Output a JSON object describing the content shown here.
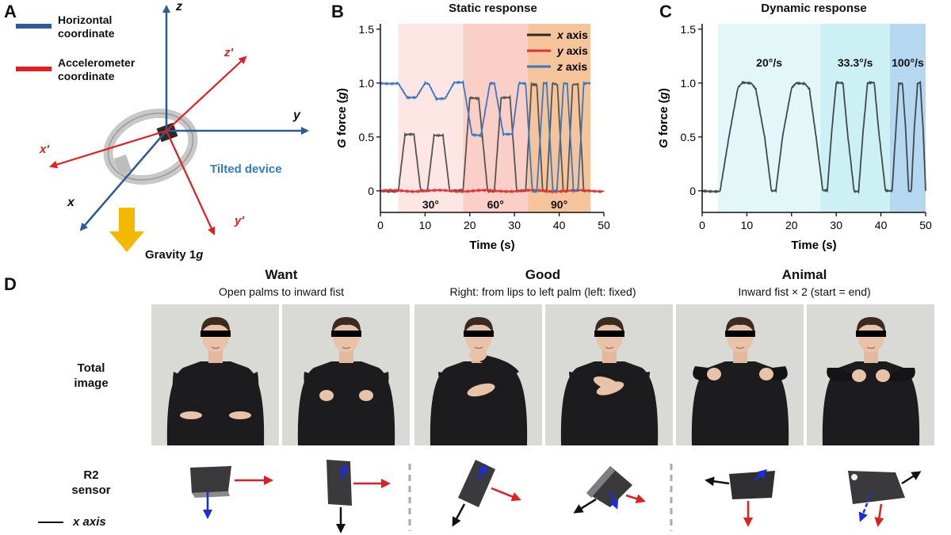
{
  "panel_a": {
    "letter": "A",
    "legend": [
      {
        "label_line1": "Horizontal",
        "label_line2": "coordinate",
        "color": "#2d5b93"
      },
      {
        "label_line1": "Accelerometer",
        "label_line2": "coordinate",
        "color": "#e02020"
      }
    ],
    "axes_horizontal": {
      "z": "z",
      "y": "y",
      "x": "x"
    },
    "axes_accel": {
      "z": "z'",
      "y": "y'",
      "x": "x'"
    },
    "tilted_label": "Tilted device",
    "gravity_prefix": "Gravity 1",
    "gravity_unit": "g"
  },
  "panel_b": {
    "letter": "B"
  },
  "panel_c": {
    "letter": "C"
  },
  "chart_data": [
    {
      "type": "line",
      "title": "Static response",
      "xlabel": "Time (s)",
      "ylabel_italic": "G",
      "ylabel_rest": " force (",
      "ylabel_unit": "g",
      "ylabel_close": ")",
      "xlim": [
        0,
        50
      ],
      "ylim": [
        -0.2,
        1.55
      ],
      "xticks": [
        "0",
        "10",
        "20",
        "30",
        "40",
        "50"
      ],
      "yticks": [
        "0",
        "0.5",
        "1.0",
        "1.5"
      ],
      "legend_position": "top-right",
      "legend": [
        {
          "name": "x",
          "suffix": " axis",
          "color": "#2b2b2b"
        },
        {
          "name": "y",
          "suffix": " axis",
          "color": "#e53030"
        },
        {
          "name": "z",
          "suffix": " axis",
          "color": "#3a78c2"
        }
      ],
      "regions": [
        {
          "label": "30°",
          "x0": 4,
          "x1": 18.5,
          "color": "#fde6e4"
        },
        {
          "label": "60°",
          "x0": 18.5,
          "x1": 33,
          "color": "#f9cfc8"
        },
        {
          "label": "90°",
          "x0": 33,
          "x1": 47,
          "color": "#f6c49a"
        }
      ],
      "series": [
        {
          "name": "x axis",
          "color": "#555555",
          "points": [
            [
              0,
              0
            ],
            [
              4,
              0
            ],
            [
              5.5,
              0.52
            ],
            [
              7.5,
              0.52
            ],
            [
              9,
              0
            ],
            [
              10.5,
              0
            ],
            [
              12,
              0.52
            ],
            [
              14,
              0.52
            ],
            [
              15.5,
              0
            ],
            [
              18.5,
              0
            ],
            [
              20,
              0.86
            ],
            [
              22,
              0.86
            ],
            [
              24,
              0
            ],
            [
              25.5,
              0
            ],
            [
              27,
              0.86
            ],
            [
              29,
              0.86
            ],
            [
              30.5,
              0
            ],
            [
              32.5,
              0
            ],
            [
              33.8,
              0.99
            ],
            [
              35,
              0.99
            ],
            [
              36.3,
              0
            ],
            [
              37.2,
              0
            ],
            [
              38.5,
              0.99
            ],
            [
              39.6,
              0.99
            ],
            [
              40.9,
              0
            ],
            [
              41.8,
              0
            ],
            [
              43,
              0.99
            ],
            [
              44.2,
              0.99
            ],
            [
              45.5,
              0
            ],
            [
              46,
              0
            ]
          ]
        },
        {
          "name": "y axis",
          "color": "#e53030",
          "points": [
            [
              0,
              0
            ],
            [
              50,
              0
            ]
          ]
        },
        {
          "name": "z axis",
          "color": "#3a78c2",
          "points": [
            [
              0,
              1
            ],
            [
              4,
              1
            ],
            [
              6,
              0.86
            ],
            [
              8,
              0.86
            ],
            [
              10,
              1
            ],
            [
              10.8,
              1
            ],
            [
              12.5,
              0.86
            ],
            [
              14.5,
              0.86
            ],
            [
              16.5,
              1
            ],
            [
              18.5,
              1
            ],
            [
              20.5,
              0.52
            ],
            [
              22.5,
              0.52
            ],
            [
              24.5,
              1
            ],
            [
              25.5,
              1
            ],
            [
              27.5,
              0.52
            ],
            [
              29.5,
              0.52
            ],
            [
              31,
              1
            ],
            [
              32.5,
              1
            ],
            [
              34,
              0
            ],
            [
              35,
              0
            ],
            [
              36.5,
              1
            ],
            [
              37.2,
              1
            ],
            [
              38.6,
              0
            ],
            [
              39.5,
              0
            ],
            [
              41,
              1
            ],
            [
              41.8,
              1
            ],
            [
              43.2,
              0
            ],
            [
              44.2,
              0
            ],
            [
              45.5,
              1
            ],
            [
              47,
              1
            ]
          ]
        }
      ]
    },
    {
      "type": "line",
      "title": "Dynamic response",
      "xlabel": "Time (s)",
      "ylabel_italic": "G",
      "ylabel_rest": " force (",
      "ylabel_unit": "g",
      "ylabel_close": ")",
      "xlim": [
        0,
        50
      ],
      "ylim": [
        -0.2,
        1.55
      ],
      "xticks": [
        "0",
        "10",
        "20",
        "30",
        "40",
        "50"
      ],
      "yticks": [
        "0",
        "0.5",
        "1.0",
        "1.5"
      ],
      "regions": [
        {
          "label": "20°/s",
          "x0": 3.5,
          "x1": 26.5,
          "color": "#e3f7f9"
        },
        {
          "label": "33.3°/s",
          "x0": 26.5,
          "x1": 42,
          "color": "#cdf0f4"
        },
        {
          "label": "100°/s",
          "x0": 42,
          "x1": 50,
          "color": "#b5d7f0"
        }
      ],
      "series": [
        {
          "name": "x axis",
          "color": "#3f4a4f",
          "points": [
            [
              0,
              0
            ],
            [
              4,
              0
            ],
            [
              6,
              0.5
            ],
            [
              8,
              0.95
            ],
            [
              9,
              1
            ],
            [
              11,
              1
            ],
            [
              12,
              0.95
            ],
            [
              14,
              0.5
            ],
            [
              15.5,
              0
            ],
            [
              16.5,
              0
            ],
            [
              18,
              0.5
            ],
            [
              20,
              0.95
            ],
            [
              21,
              1
            ],
            [
              23,
              1
            ],
            [
              24,
              0.95
            ],
            [
              25.5,
              0.5
            ],
            [
              27,
              0
            ],
            [
              28,
              0
            ],
            [
              29,
              0.55
            ],
            [
              30,
              1
            ],
            [
              31.5,
              1
            ],
            [
              32.5,
              0.55
            ],
            [
              34,
              0
            ],
            [
              35,
              0
            ],
            [
              36,
              0.55
            ],
            [
              37,
              1
            ],
            [
              38.5,
              1
            ],
            [
              39.5,
              0.55
            ],
            [
              41,
              0
            ],
            [
              42.5,
              0
            ],
            [
              43.4,
              0.6
            ],
            [
              44,
              1
            ],
            [
              44.8,
              1
            ],
            [
              45.5,
              0.6
            ],
            [
              46.2,
              0
            ],
            [
              46.8,
              0
            ],
            [
              47.5,
              0.6
            ],
            [
              48.2,
              1
            ],
            [
              48.8,
              1
            ],
            [
              49.4,
              0.6
            ],
            [
              50,
              0
            ]
          ]
        }
      ]
    }
  ],
  "panel_d": {
    "letter": "D",
    "row_total": {
      "line1": "Total",
      "line2": "image"
    },
    "row_sensor": {
      "line1": "R2",
      "line2": "sensor"
    },
    "legend_label": "x axis",
    "gestures": [
      {
        "title": "Want",
        "desc": "Open palms to inward fist"
      },
      {
        "title": "Good",
        "desc": "Right: from lips to left palm (left: fixed)"
      },
      {
        "title": "Animal",
        "desc": "Inward fist × 2 (start = end)"
      }
    ],
    "colors": {
      "x_axis": "#111111",
      "y_axis": "#e02020",
      "z_axis": "#1a2fd8",
      "box": "#2e2e30"
    }
  }
}
